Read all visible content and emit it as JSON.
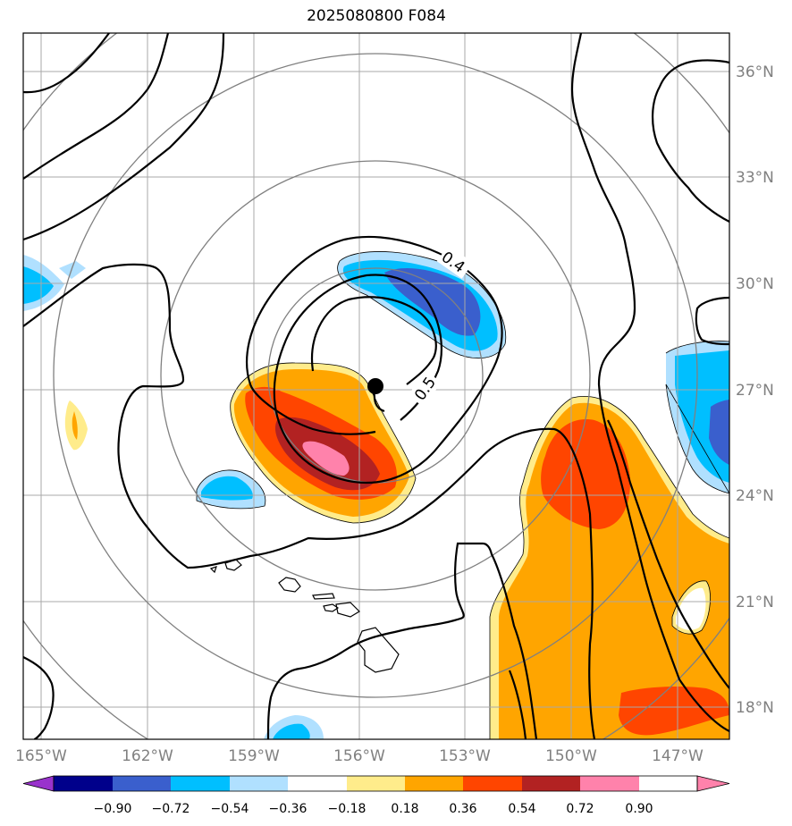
{
  "title": "2025080800 F084",
  "map": {
    "lon_labels": [
      "165°W",
      "162°W",
      "159°W",
      "156°W",
      "153°W",
      "150°W",
      "147°W"
    ],
    "lat_labels": [
      "36°N",
      "33°N",
      "30°N",
      "27°N",
      "24°N",
      "21°N",
      "18°N"
    ],
    "contour_labels": [
      "0.4",
      "0.5"
    ],
    "center_marker": "storm-center"
  },
  "colorbar": {
    "ticks": [
      "−0.90",
      "−0.72",
      "−0.54",
      "−0.36",
      "−0.18",
      "0.18",
      "0.36",
      "0.54",
      "0.72",
      "0.90"
    ],
    "colors": [
      "#9932cc",
      "#00008b",
      "#3a5fcd",
      "#00bfff",
      "#b0e0ff",
      "#ffffff",
      "#ffec8b",
      "#ffa500",
      "#ff4500",
      "#b22222",
      "#ff82ab"
    ]
  }
}
